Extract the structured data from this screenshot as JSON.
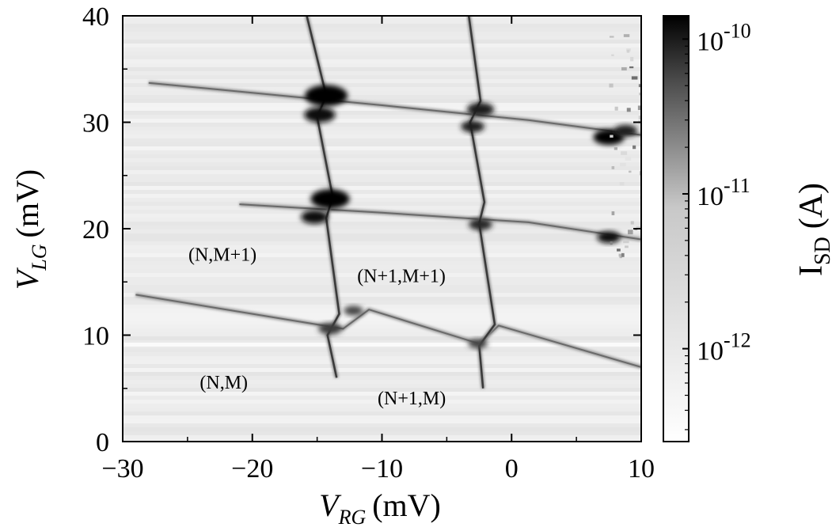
{
  "chart_data": {
    "type": "heatmap",
    "x_axis": {
      "label_main": "V",
      "label_sub": "RG",
      "label_unit": "(mV)",
      "range": [
        -30,
        10
      ],
      "ticks": [
        -30,
        -20,
        -10,
        0,
        10
      ],
      "tick_labels": [
        "−30",
        "−20",
        "−10",
        "0",
        "10"
      ]
    },
    "y_axis": {
      "label_main": "V",
      "label_sub": "LG",
      "label_unit": "(mV)",
      "range": [
        0,
        40
      ],
      "ticks": [
        0,
        10,
        20,
        30,
        40
      ],
      "tick_labels": [
        "0",
        "10",
        "20",
        "30",
        "40"
      ]
    },
    "colorbar": {
      "label_main": "I",
      "label_sub": "SD",
      "label_unit": "(A)",
      "scale": "log",
      "range": [
        -12.6,
        -9.85
      ],
      "ticks": [
        {
          "value": -10,
          "base": "10",
          "exponent": "-10"
        },
        {
          "value": -11,
          "base": "10",
          "exponent": "-11"
        },
        {
          "value": -12,
          "base": "10",
          "exponent": "-12"
        }
      ],
      "colormap": [
        "#ffffff",
        "#000000"
      ]
    },
    "region_labels": [
      {
        "text": "(N,M+1)",
        "x": -22.3,
        "y": 17.0
      },
      {
        "text": "(N+1,M+1)",
        "x": -8.5,
        "y": 15.0
      },
      {
        "text": "(N,M)",
        "x": -22.2,
        "y": 5.0
      },
      {
        "text": "(N+1,M)",
        "x": -7.7,
        "y": 3.5
      }
    ],
    "features": {
      "steep_lines": [
        [
          [
            -15.8,
            40
          ],
          [
            -14.3,
            32.5
          ],
          [
            -15.0,
            30.5
          ],
          [
            -13.8,
            23
          ],
          [
            -14.3,
            21
          ],
          [
            -13.3,
            12
          ],
          [
            -14.2,
            10
          ],
          [
            -13.5,
            6
          ]
        ],
        [
          [
            -3.3,
            40
          ],
          [
            -2.4,
            32
          ],
          [
            -3.2,
            30
          ],
          [
            -2.1,
            22.5
          ],
          [
            -2.5,
            20.5
          ],
          [
            -1.3,
            11
          ],
          [
            -2.5,
            9
          ],
          [
            -2.2,
            5
          ]
        ]
      ],
      "shallow_lines": [
        [
          [
            -28,
            33.7
          ],
          [
            -10,
            31.6
          ],
          [
            1.3,
            30.2
          ],
          [
            10,
            28.8
          ]
        ],
        [
          [
            -21,
            22.3
          ],
          [
            -10,
            21.5
          ],
          [
            1.3,
            20.6
          ],
          [
            10,
            19.0
          ]
        ],
        [
          [
            -29,
            13.8
          ],
          [
            -13,
            10.6
          ],
          [
            -11,
            12.4
          ],
          [
            -2.5,
            9.2
          ],
          [
            -1.0,
            10.9
          ],
          [
            10,
            7.0
          ]
        ]
      ],
      "hot_spots": [
        {
          "x": -14.3,
          "y": 32.5,
          "r": 1.1,
          "logI": -9.9
        },
        {
          "x": -14.8,
          "y": 30.7,
          "r": 0.8,
          "logI": -10.0
        },
        {
          "x": -2.4,
          "y": 31.2,
          "r": 0.7,
          "logI": -10.1
        },
        {
          "x": -3.0,
          "y": 29.6,
          "r": 0.6,
          "logI": -10.1
        },
        {
          "x": -14.0,
          "y": 22.8,
          "r": 1.0,
          "logI": -9.9
        },
        {
          "x": -15.2,
          "y": 21.1,
          "r": 0.7,
          "logI": -10.0
        },
        {
          "x": -2.4,
          "y": 20.4,
          "r": 0.6,
          "logI": -10.2
        },
        {
          "x": -14.0,
          "y": 10.6,
          "r": 0.6,
          "logI": -10.4
        },
        {
          "x": -12.2,
          "y": 12.3,
          "r": 0.5,
          "logI": -10.5
        },
        {
          "x": -2.6,
          "y": 9.2,
          "r": 0.5,
          "logI": -10.5
        },
        {
          "x": 7.5,
          "y": 28.6,
          "r": 0.8,
          "logI": -9.9
        },
        {
          "x": 8.8,
          "y": 29.2,
          "r": 0.6,
          "logI": -10.1
        },
        {
          "x": 7.5,
          "y": 19.2,
          "r": 0.6,
          "logI": -10.0
        }
      ],
      "background_logI": -12.3,
      "noise_column_x": [
        7.5,
        10
      ]
    },
    "grid": false,
    "legend": "none"
  }
}
